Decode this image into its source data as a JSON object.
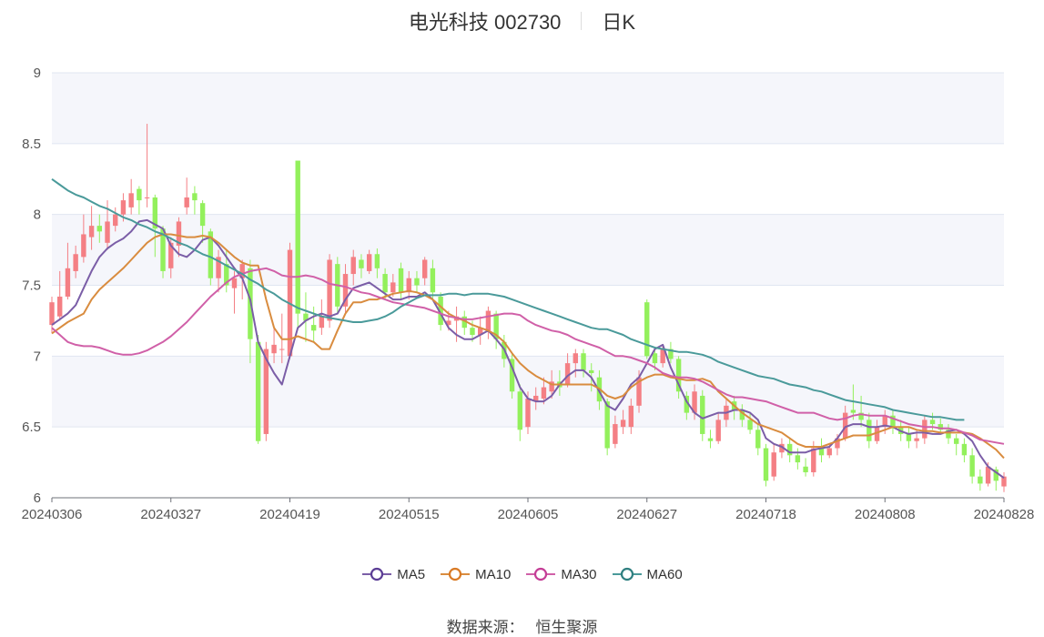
{
  "header": {
    "stock_name": "电光科技 002730",
    "period": "日K"
  },
  "footer": {
    "source_label": "数据来源：",
    "source_name": "恒生聚源"
  },
  "colors": {
    "up": "#f47f84",
    "down": "#93f05c",
    "ma5": "#7b5ea7",
    "ma10": "#d98c3f",
    "ma30": "#d060a8",
    "ma60": "#4a9a9a",
    "band": "#f5f6fb",
    "grid": "#e0e6f1"
  },
  "chart_data": {
    "type": "candlestick",
    "ylim": [
      6,
      9
    ],
    "yticks": [
      "6",
      "6.5",
      "7",
      "7.5",
      "8",
      "8.5",
      "9"
    ],
    "xtick_labels": [
      "20240306",
      "20240327",
      "20240419",
      "20240515",
      "20240605",
      "20240627",
      "20240718",
      "20240808",
      "20240828"
    ],
    "xtick_index": [
      0,
      15,
      30,
      45,
      60,
      75,
      90,
      105,
      120
    ],
    "legend": [
      "MA5",
      "MA10",
      "MA30",
      "MA60"
    ],
    "candles": [
      [
        7.22,
        7.38,
        7.42,
        7.16
      ],
      [
        7.28,
        7.42,
        7.6,
        7.25
      ],
      [
        7.42,
        7.62,
        7.8,
        7.4
      ],
      [
        7.6,
        7.72,
        7.78,
        7.55
      ],
      [
        7.7,
        7.86,
        8.0,
        7.66
      ],
      [
        7.84,
        7.92,
        8.06,
        7.75
      ],
      [
        7.92,
        7.88,
        8.0,
        7.8
      ],
      [
        7.8,
        7.95,
        8.1,
        7.75
      ],
      [
        7.92,
        8.0,
        8.05,
        7.88
      ],
      [
        8.0,
        8.1,
        8.15,
        7.95
      ],
      [
        8.05,
        8.15,
        8.25,
        8.0
      ],
      [
        8.18,
        8.1,
        8.2,
        8.0
      ],
      [
        8.12,
        8.12,
        8.64,
        8.05
      ],
      [
        8.12,
        7.9,
        8.14,
        7.7
      ],
      [
        7.9,
        7.6,
        7.92,
        7.55
      ],
      [
        7.62,
        7.8,
        7.84,
        7.55
      ],
      [
        7.78,
        7.95,
        7.98,
        7.7
      ],
      [
        8.05,
        8.12,
        8.26,
        8.0
      ],
      [
        8.15,
        8.1,
        8.2,
        8.0
      ],
      [
        8.08,
        7.92,
        8.1,
        7.8
      ],
      [
        7.88,
        7.55,
        7.9,
        7.5
      ],
      [
        7.55,
        7.7,
        7.75,
        7.45
      ],
      [
        7.65,
        7.5,
        7.75,
        7.45
      ],
      [
        7.48,
        7.55,
        7.6,
        7.3
      ],
      [
        7.55,
        7.65,
        7.68,
        7.4
      ],
      [
        7.62,
        7.12,
        7.68,
        6.95
      ],
      [
        7.1,
        6.4,
        7.15,
        6.38
      ],
      [
        6.45,
        7.05,
        7.1,
        6.4
      ],
      [
        7.02,
        7.08,
        7.2,
        6.95
      ],
      [
        7.05,
        7.05,
        7.3,
        6.95
      ],
      [
        7.0,
        7.75,
        7.8,
        6.98
      ],
      [
        8.38,
        7.3,
        8.38,
        7.2
      ],
      [
        7.3,
        7.25,
        7.45,
        7.1
      ],
      [
        7.22,
        7.18,
        7.35,
        7.1
      ],
      [
        7.2,
        7.28,
        7.4,
        7.15
      ],
      [
        7.25,
        7.68,
        7.72,
        7.2
      ],
      [
        7.65,
        7.35,
        7.7,
        7.3
      ],
      [
        7.35,
        7.58,
        7.65,
        7.3
      ],
      [
        7.58,
        7.7,
        7.75,
        7.5
      ],
      [
        7.68,
        7.62,
        7.72,
        7.55
      ],
      [
        7.6,
        7.72,
        7.75,
        7.58
      ],
      [
        7.72,
        7.62,
        7.76,
        7.55
      ],
      [
        7.58,
        7.45,
        7.62,
        7.4
      ],
      [
        7.45,
        7.52,
        7.58,
        7.42
      ],
      [
        7.62,
        7.45,
        7.66,
        7.4
      ],
      [
        7.45,
        7.55,
        7.6,
        7.4
      ],
      [
        7.55,
        7.5,
        7.6,
        7.45
      ],
      [
        7.55,
        7.68,
        7.7,
        7.5
      ],
      [
        7.62,
        7.45,
        7.68,
        7.4
      ],
      [
        7.42,
        7.22,
        7.45,
        7.18
      ],
      [
        7.22,
        7.25,
        7.32,
        7.18
      ],
      [
        7.25,
        7.28,
        7.35,
        7.1
      ],
      [
        7.28,
        7.2,
        7.32,
        7.15
      ],
      [
        7.2,
        7.15,
        7.25,
        7.1
      ],
      [
        7.15,
        7.2,
        7.28,
        7.08
      ],
      [
        7.18,
        7.32,
        7.35,
        7.12
      ],
      [
        7.3,
        7.12,
        7.32,
        7.05
      ],
      [
        7.1,
        6.98,
        7.15,
        6.92
      ],
      [
        6.98,
        6.75,
        7.02,
        6.7
      ],
      [
        6.75,
        6.48,
        6.8,
        6.4
      ],
      [
        6.5,
        6.7,
        6.75,
        6.45
      ],
      [
        6.68,
        6.72,
        6.78,
        6.62
      ],
      [
        6.7,
        6.78,
        6.85,
        6.66
      ],
      [
        6.75,
        6.82,
        6.9,
        6.7
      ],
      [
        6.82,
        6.78,
        6.9,
        6.72
      ],
      [
        6.8,
        6.95,
        7.02,
        6.78
      ],
      [
        6.95,
        7.02,
        7.05,
        6.85
      ],
      [
        7.02,
        6.9,
        7.05,
        6.85
      ],
      [
        6.9,
        6.88,
        6.95,
        6.75
      ],
      [
        6.85,
        6.68,
        6.9,
        6.62
      ],
      [
        6.68,
        6.35,
        6.7,
        6.3
      ],
      [
        6.38,
        6.52,
        6.58,
        6.35
      ],
      [
        6.5,
        6.55,
        6.62,
        6.45
      ],
      [
        6.5,
        6.65,
        6.7,
        6.45
      ],
      [
        6.65,
        6.85,
        6.9,
        6.6
      ],
      [
        7.38,
        7.0,
        7.4,
        6.98
      ],
      [
        7.02,
        6.95,
        7.05,
        6.9
      ],
      [
        6.95,
        7.05,
        7.08,
        6.92
      ],
      [
        7.05,
        6.98,
        7.1,
        6.95
      ],
      [
        6.98,
        6.75,
        7.0,
        6.7
      ],
      [
        6.72,
        6.6,
        6.75,
        6.55
      ],
      [
        6.6,
        6.75,
        6.8,
        6.55
      ],
      [
        6.72,
        6.45,
        6.76,
        6.4
      ],
      [
        6.42,
        6.4,
        6.48,
        6.35
      ],
      [
        6.4,
        6.55,
        6.6,
        6.38
      ],
      [
        6.55,
        6.65,
        6.7,
        6.5
      ],
      [
        6.68,
        6.62,
        6.72,
        6.55
      ],
      [
        6.62,
        6.55,
        6.66,
        6.5
      ],
      [
        6.55,
        6.48,
        6.6,
        6.45
      ],
      [
        6.48,
        6.35,
        6.52,
        6.3
      ],
      [
        6.35,
        6.12,
        6.38,
        6.08
      ],
      [
        6.15,
        6.32,
        6.38,
        6.12
      ],
      [
        6.32,
        6.38,
        6.42,
        6.28
      ],
      [
        6.38,
        6.3,
        6.42,
        6.25
      ],
      [
        6.3,
        6.25,
        6.35,
        6.2
      ],
      [
        6.22,
        6.18,
        6.28,
        6.15
      ],
      [
        6.18,
        6.35,
        6.4,
        6.15
      ],
      [
        6.35,
        6.3,
        6.42,
        6.25
      ],
      [
        6.3,
        6.35,
        6.38,
        6.28
      ],
      [
        6.35,
        6.42,
        6.45,
        6.3
      ],
      [
        6.42,
        6.6,
        6.65,
        6.4
      ],
      [
        6.62,
        6.6,
        6.8,
        6.55
      ],
      [
        6.6,
        6.55,
        6.72,
        6.5
      ],
      [
        6.55,
        6.4,
        6.6,
        6.35
      ],
      [
        6.4,
        6.5,
        6.55,
        6.38
      ],
      [
        6.5,
        6.58,
        6.62,
        6.45
      ],
      [
        6.58,
        6.5,
        6.62,
        6.45
      ],
      [
        6.5,
        6.45,
        6.55,
        6.4
      ],
      [
        6.45,
        6.4,
        6.5,
        6.35
      ],
      [
        6.4,
        6.42,
        6.48,
        6.35
      ],
      [
        6.42,
        6.55,
        6.58,
        6.38
      ],
      [
        6.55,
        6.52,
        6.6,
        6.48
      ],
      [
        6.52,
        6.48,
        6.56,
        6.45
      ],
      [
        6.48,
        6.42,
        6.52,
        6.38
      ],
      [
        6.42,
        6.38,
        6.45,
        6.3
      ],
      [
        6.38,
        6.3,
        6.42,
        6.25
      ],
      [
        6.3,
        6.15,
        6.35,
        6.1
      ],
      [
        6.15,
        6.1,
        6.2,
        6.05
      ],
      [
        6.1,
        6.22,
        6.25,
        6.08
      ],
      [
        6.2,
        6.12,
        6.22,
        6.05
      ],
      [
        6.08,
        6.15,
        6.18,
        6.04
      ]
    ],
    "series": [
      {
        "name": "MA5",
        "values": [
          7.22,
          7.26,
          7.3,
          7.36,
          7.48,
          7.6,
          7.7,
          7.76,
          7.8,
          7.83,
          7.88,
          7.95,
          7.96,
          7.93,
          7.9,
          7.78,
          7.72,
          7.7,
          7.75,
          7.82,
          7.84,
          7.78,
          7.7,
          7.62,
          7.55,
          7.4,
          7.1,
          6.98,
          6.88,
          6.8,
          7.0,
          7.2,
          7.25,
          7.28,
          7.3,
          7.28,
          7.3,
          7.4,
          7.48,
          7.5,
          7.52,
          7.48,
          7.44,
          7.4,
          7.4,
          7.42,
          7.42,
          7.45,
          7.4,
          7.3,
          7.2,
          7.15,
          7.12,
          7.12,
          7.15,
          7.18,
          7.12,
          7.05,
          6.92,
          6.78,
          6.7,
          6.68,
          6.68,
          6.72,
          6.8,
          6.86,
          6.9,
          6.9,
          6.85,
          6.75,
          6.65,
          6.62,
          6.7,
          6.8,
          6.85,
          6.95,
          7.05,
          7.08,
          6.92,
          6.8,
          6.68,
          6.6,
          6.56,
          6.58,
          6.6,
          6.6,
          6.62,
          6.62,
          6.6,
          6.55,
          6.42,
          6.38,
          6.36,
          6.32,
          6.32,
          6.32,
          6.34,
          6.35,
          6.36,
          6.42,
          6.5,
          6.52,
          6.52,
          6.5,
          6.5,
          6.51,
          6.5,
          6.47,
          6.45,
          6.46,
          6.46,
          6.45,
          6.45,
          6.47,
          6.48,
          6.45,
          6.4,
          6.3,
          6.22,
          6.18,
          6.14
        ]
      },
      {
        "name": "MA10",
        "values": [
          7.16,
          7.2,
          7.24,
          7.27,
          7.3,
          7.4,
          7.47,
          7.52,
          7.57,
          7.62,
          7.68,
          7.74,
          7.8,
          7.84,
          7.86,
          7.86,
          7.85,
          7.84,
          7.84,
          7.85,
          7.84,
          7.8,
          7.75,
          7.7,
          7.66,
          7.64,
          7.64,
          7.4,
          7.2,
          7.12,
          7.12,
          7.14,
          7.12,
          7.1,
          7.05,
          7.05,
          7.18,
          7.3,
          7.38,
          7.38,
          7.4,
          7.4,
          7.42,
          7.44,
          7.45,
          7.46,
          7.45,
          7.43,
          7.4,
          7.35,
          7.3,
          7.27,
          7.25,
          7.22,
          7.2,
          7.18,
          7.15,
          7.1,
          7.02,
          6.95,
          6.9,
          6.86,
          6.83,
          6.8,
          6.8,
          6.8,
          6.8,
          6.8,
          6.8,
          6.77,
          6.72,
          6.7,
          6.72,
          6.78,
          6.82,
          6.85,
          6.87,
          6.87,
          6.85,
          6.84,
          6.83,
          6.83,
          6.84,
          6.82,
          6.75,
          6.7,
          6.65,
          6.6,
          6.56,
          6.52,
          6.5,
          6.48,
          6.46,
          6.42,
          6.38,
          6.36,
          6.36,
          6.36,
          6.38,
          6.4,
          6.42,
          6.44,
          6.44,
          6.44,
          6.46,
          6.48,
          6.5,
          6.5,
          6.5,
          6.48,
          6.47,
          6.47,
          6.46,
          6.46,
          6.46,
          6.46,
          6.45,
          6.42,
          6.38,
          6.34,
          6.28
        ]
      },
      {
        "name": "MA30",
        "values": [
          7.2,
          7.15,
          7.1,
          7.08,
          7.07,
          7.07,
          7.06,
          7.04,
          7.02,
          7.01,
          7.01,
          7.02,
          7.04,
          7.07,
          7.1,
          7.14,
          7.19,
          7.24,
          7.3,
          7.36,
          7.42,
          7.47,
          7.52,
          7.56,
          7.58,
          7.6,
          7.61,
          7.62,
          7.6,
          7.57,
          7.56,
          7.56,
          7.57,
          7.56,
          7.54,
          7.51,
          7.5,
          7.49,
          7.47,
          7.45,
          7.44,
          7.42,
          7.4,
          7.38,
          7.37,
          7.36,
          7.35,
          7.34,
          7.32,
          7.3,
          7.28,
          7.27,
          7.26,
          7.26,
          7.27,
          7.28,
          7.29,
          7.3,
          7.3,
          7.29,
          7.25,
          7.22,
          7.2,
          7.18,
          7.17,
          7.15,
          7.12,
          7.1,
          7.08,
          7.06,
          7.03,
          7.0,
          7.0,
          6.99,
          6.97,
          6.95,
          6.92,
          6.88,
          6.86,
          6.85,
          6.85,
          6.84,
          6.82,
          6.79,
          6.76,
          6.73,
          6.71,
          6.71,
          6.7,
          6.69,
          6.68,
          6.66,
          6.64,
          6.62,
          6.6,
          6.6,
          6.6,
          6.58,
          6.56,
          6.55,
          6.56,
          6.58,
          6.59,
          6.58,
          6.58,
          6.58,
          6.56,
          6.54,
          6.52,
          6.51,
          6.5,
          6.5,
          6.49,
          6.49,
          6.48,
          6.46,
          6.44,
          6.41,
          6.4,
          6.39,
          6.38
        ]
      },
      {
        "name": "MA60",
        "values": [
          8.25,
          8.21,
          8.17,
          8.14,
          8.12,
          8.09,
          8.06,
          8.04,
          8.01,
          7.98,
          7.96,
          7.93,
          7.91,
          7.88,
          7.86,
          7.83,
          7.8,
          7.78,
          7.75,
          7.72,
          7.7,
          7.67,
          7.64,
          7.61,
          7.58,
          7.54,
          7.51,
          7.47,
          7.44,
          7.4,
          7.37,
          7.34,
          7.32,
          7.3,
          7.28,
          7.27,
          7.26,
          7.25,
          7.24,
          7.24,
          7.25,
          7.26,
          7.28,
          7.31,
          7.35,
          7.38,
          7.41,
          7.43,
          7.43,
          7.43,
          7.44,
          7.44,
          7.43,
          7.44,
          7.44,
          7.44,
          7.43,
          7.42,
          7.4,
          7.38,
          7.36,
          7.34,
          7.32,
          7.3,
          7.28,
          7.26,
          7.24,
          7.22,
          7.2,
          7.19,
          7.19,
          7.17,
          7.15,
          7.12,
          7.1,
          7.08,
          7.06,
          7.05,
          7.04,
          7.03,
          7.03,
          7.02,
          7.01,
          6.99,
          6.96,
          6.94,
          6.92,
          6.9,
          6.88,
          6.86,
          6.85,
          6.84,
          6.82,
          6.8,
          6.79,
          6.78,
          6.76,
          6.75,
          6.73,
          6.71,
          6.69,
          6.68,
          6.67,
          6.66,
          6.65,
          6.64,
          6.62,
          6.61,
          6.6,
          6.59,
          6.58,
          6.57,
          6.57,
          6.56,
          6.55,
          6.55
        ]
      }
    ]
  }
}
